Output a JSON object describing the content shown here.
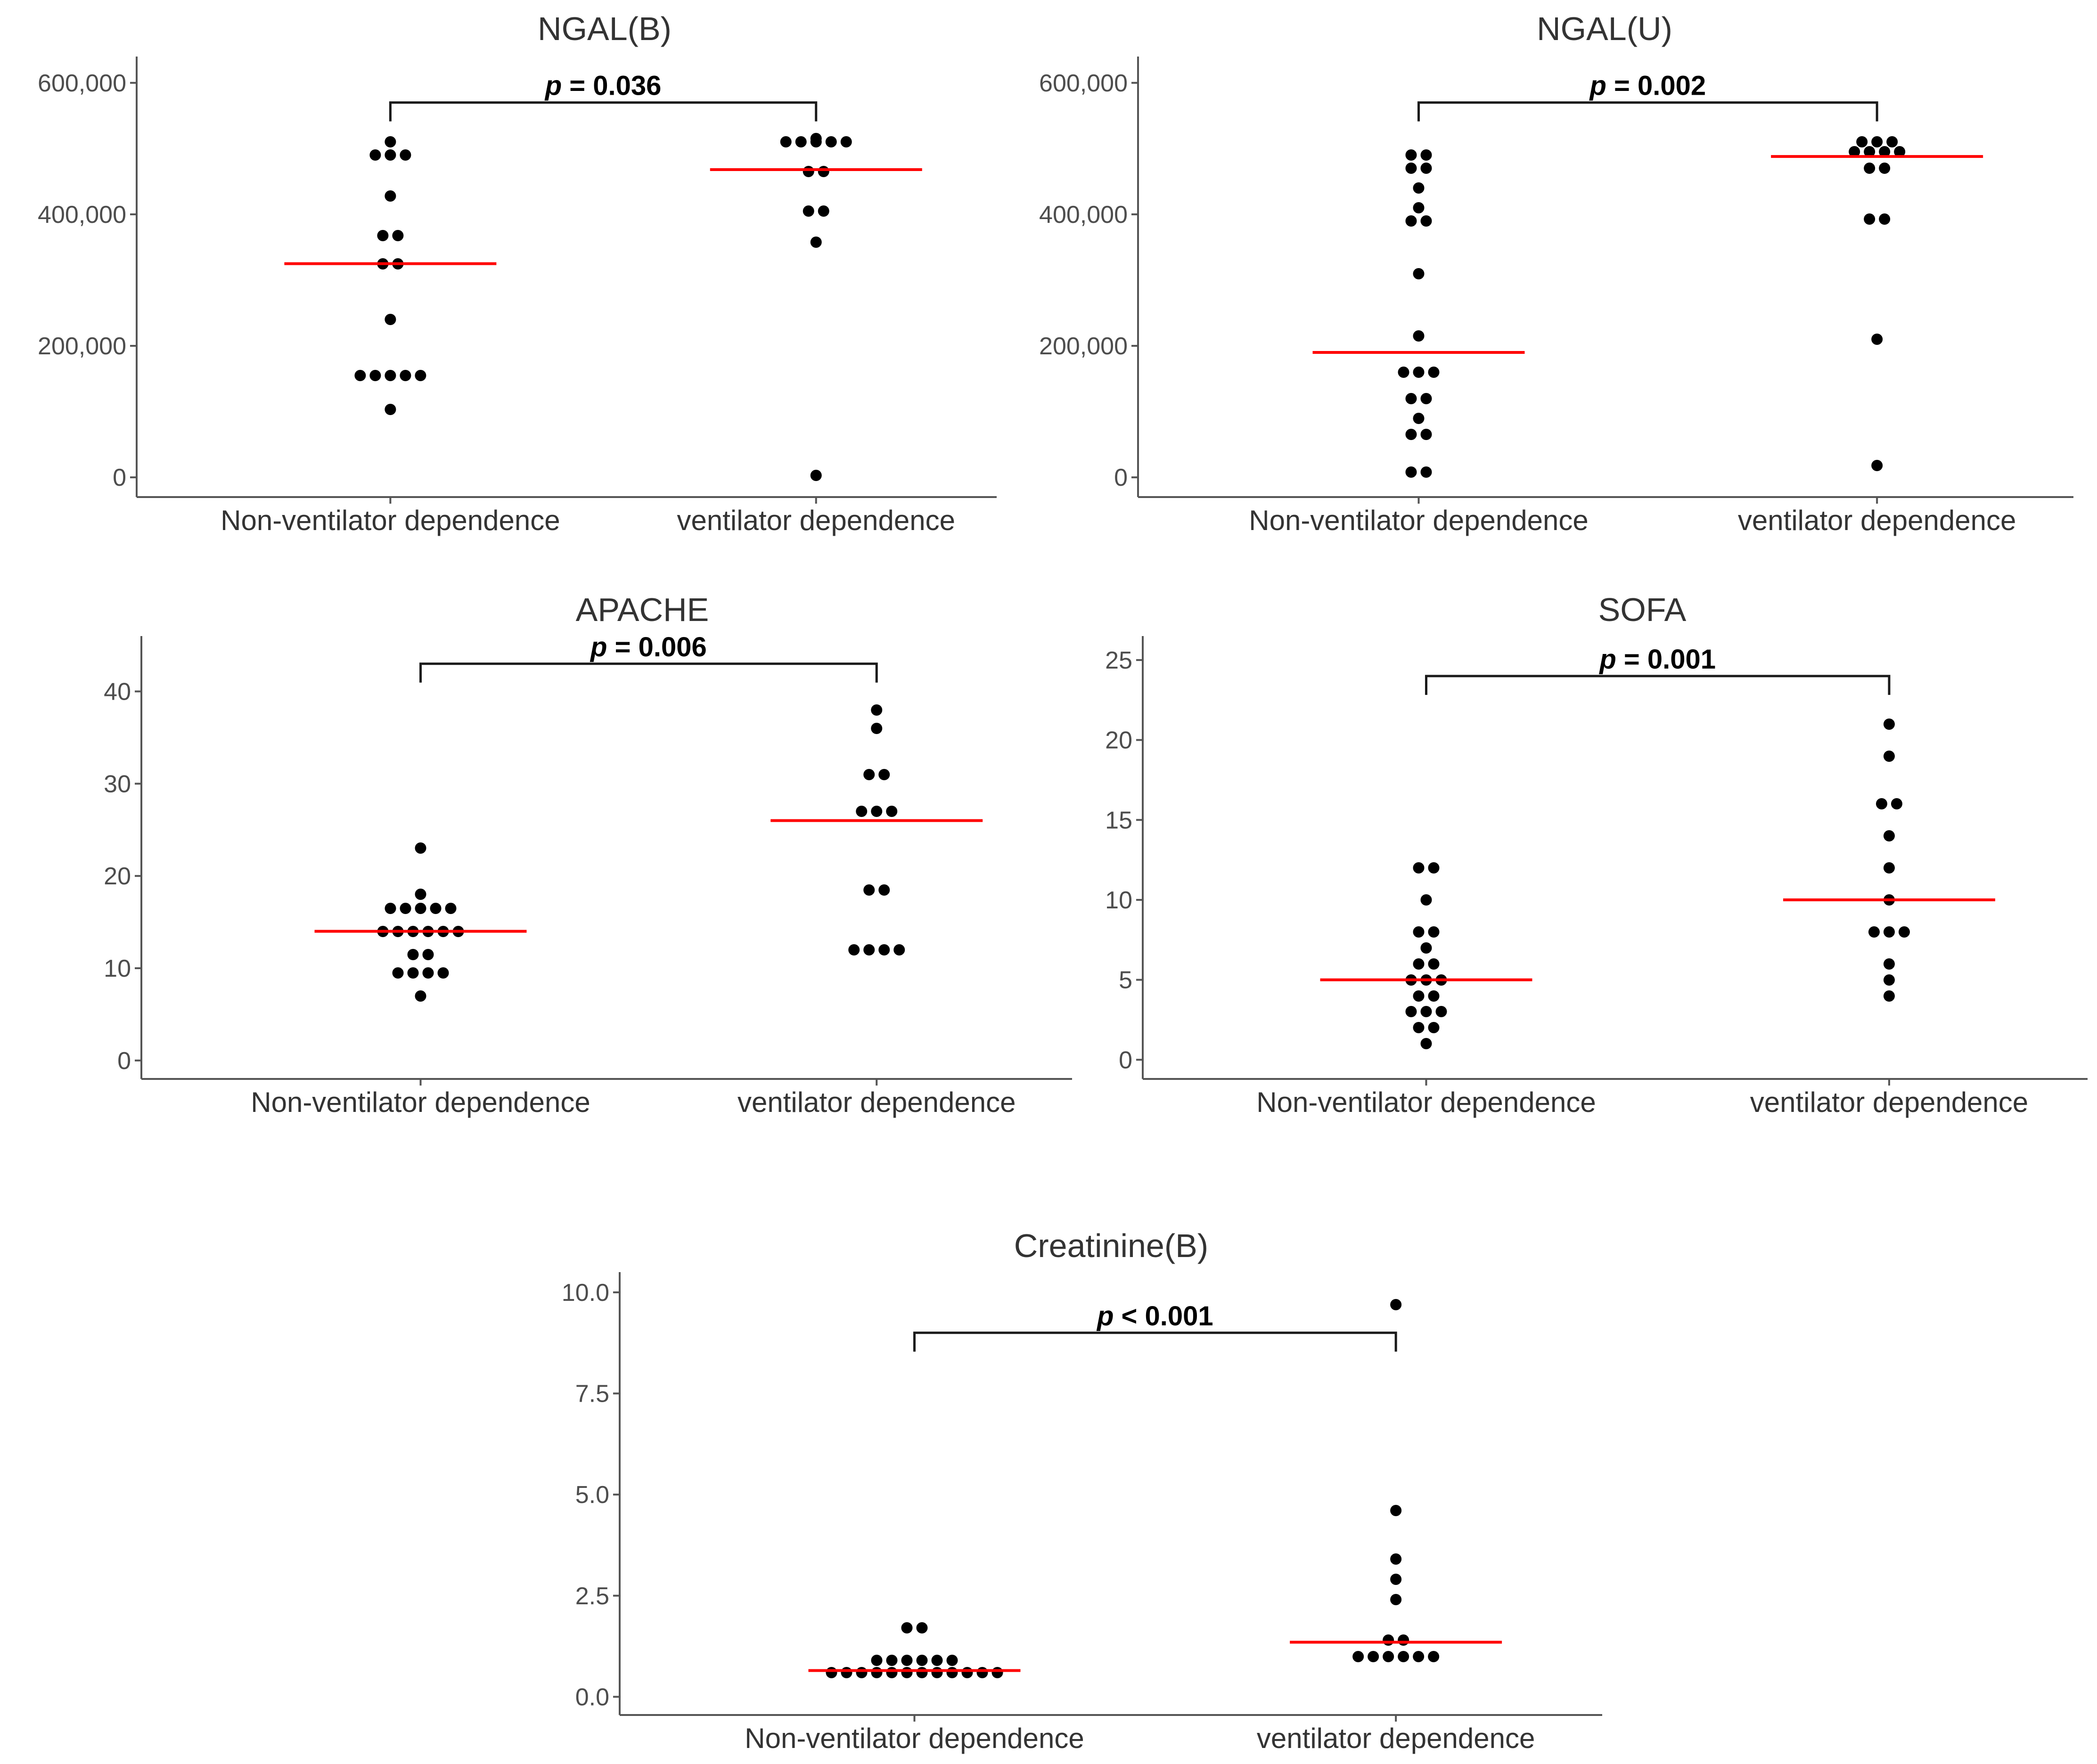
{
  "colors": {
    "dot": "#000000",
    "median": "#ff0000",
    "axis": "#555555"
  },
  "chart_data": [
    {
      "type": "scatter",
      "title": "NGAL(B)",
      "categories": [
        "Non-ventilator dependence",
        "ventilator dependence"
      ],
      "ylim": [
        -30000,
        640000
      ],
      "yticks": [
        0,
        200000,
        400000,
        600000
      ],
      "ytick_labels": [
        "0",
        "200,000",
        "400,000",
        "600,000"
      ],
      "series": [
        {
          "name": "Non-ventilator dependence",
          "values": [
            510000,
            490000,
            490000,
            490000,
            428000,
            368000,
            368000,
            325000,
            325000,
            240000,
            155000,
            155000,
            155000,
            155000,
            155000,
            103000
          ],
          "median": 325000
        },
        {
          "name": "ventilator dependence",
          "values": [
            515000,
            510000,
            510000,
            510000,
            510000,
            510000,
            465000,
            465000,
            405000,
            405000,
            358000,
            3000
          ],
          "median": 468000
        }
      ],
      "comparison": {
        "label_prefix": "p",
        "label_rest": " = 0.036",
        "bracket_y": 570000
      }
    },
    {
      "type": "scatter",
      "title": "NGAL(U)",
      "categories": [
        "Non-ventilator dependence",
        "ventilator dependence"
      ],
      "ylim": [
        -30000,
        640000
      ],
      "yticks": [
        0,
        200000,
        400000,
        600000
      ],
      "ytick_labels": [
        "0",
        "200,000",
        "400,000",
        "600,000"
      ],
      "series": [
        {
          "name": "Non-ventilator dependence",
          "values": [
            490000,
            490000,
            470000,
            470000,
            440000,
            410000,
            390000,
            390000,
            310000,
            215000,
            160000,
            160000,
            160000,
            120000,
            120000,
            90000,
            65000,
            65000,
            8000,
            8000
          ],
          "median": 190000
        },
        {
          "name": "ventilator dependence",
          "values": [
            510000,
            510000,
            510000,
            495000,
            495000,
            495000,
            495000,
            470000,
            470000,
            393000,
            393000,
            210000,
            18000
          ],
          "median": 488000
        }
      ],
      "comparison": {
        "label_prefix": "p",
        "label_rest": " = 0.002",
        "bracket_y": 570000
      }
    },
    {
      "type": "scatter",
      "title": "APACHE",
      "categories": [
        "Non-ventilator dependence",
        "ventilator dependence"
      ],
      "ylim": [
        -2,
        46
      ],
      "yticks": [
        0,
        10,
        20,
        30,
        40
      ],
      "ytick_labels": [
        "0",
        "10",
        "20",
        "30",
        "40"
      ],
      "series": [
        {
          "name": "Non-ventilator dependence",
          "values": [
            23,
            18,
            16.5,
            16.5,
            16.5,
            16.5,
            16.5,
            14,
            14,
            14,
            14,
            14,
            14,
            11.5,
            11.5,
            9.5,
            9.5,
            9.5,
            9.5,
            7
          ],
          "median": 14
        },
        {
          "name": "ventilator dependence",
          "values": [
            38,
            36,
            31,
            31,
            27,
            27,
            27,
            18.5,
            18.5,
            12,
            12,
            12,
            12
          ],
          "median": 26
        }
      ],
      "comparison": {
        "label_prefix": "p",
        "label_rest": " = 0.006",
        "bracket_y": 43
      }
    },
    {
      "type": "scatter",
      "title": "SOFA",
      "categories": [
        "Non-ventilator dependence",
        "ventilator dependence"
      ],
      "ylim": [
        -1.2,
        26.5
      ],
      "yticks": [
        0,
        5,
        10,
        15,
        20,
        25
      ],
      "ytick_labels": [
        "0",
        "5",
        "10",
        "15",
        "20",
        "25"
      ],
      "series": [
        {
          "name": "Non-ventilator dependence",
          "values": [
            12,
            12,
            10,
            8,
            8,
            7,
            6,
            6,
            5,
            5,
            5,
            4,
            4,
            3,
            3,
            3,
            2,
            2,
            1
          ],
          "median": 5
        },
        {
          "name": "ventilator dependence",
          "values": [
            21,
            19,
            16,
            16,
            14,
            12,
            10,
            8,
            8,
            8,
            6,
            5,
            4
          ],
          "median": 10
        }
      ],
      "comparison": {
        "label_prefix": "p",
        "label_rest": " = 0.001",
        "bracket_y": 24
      }
    },
    {
      "type": "scatter",
      "title": "Creatinine(B)",
      "categories": [
        "Non-ventilator dependence",
        "ventilator dependence"
      ],
      "ylim": [
        -0.45,
        10.5
      ],
      "yticks": [
        0.0,
        2.5,
        5.0,
        7.5,
        10.0
      ],
      "ytick_labels": [
        "0.0",
        "2.5",
        "5.0",
        "7.5",
        "10.0"
      ],
      "series": [
        {
          "name": "Non-ventilator dependence",
          "values": [
            1.7,
            1.7,
            0.9,
            0.9,
            0.9,
            0.9,
            0.9,
            0.9,
            0.6,
            0.6,
            0.6,
            0.6,
            0.6,
            0.6,
            0.6,
            0.6,
            0.6,
            0.6,
            0.6,
            0.6
          ],
          "median": 0.65
        },
        {
          "name": "ventilator dependence",
          "values": [
            9.7,
            4.6,
            3.4,
            2.9,
            2.4,
            1.4,
            1.4,
            1.0,
            1.0,
            1.0,
            1.0,
            1.0,
            1.0
          ],
          "median": 1.35
        }
      ],
      "comparison": {
        "label_prefix": "p",
        "label_rest": " < 0.001",
        "bracket_y": 9.0
      }
    }
  ]
}
